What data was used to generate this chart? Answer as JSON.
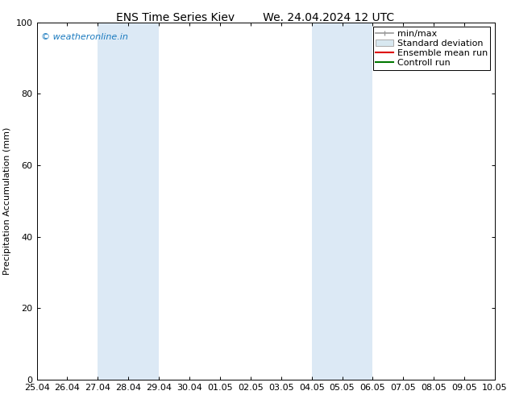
{
  "title_left": "ENS Time Series Kiev",
  "title_right": "We. 24.04.2024 12 UTC",
  "ylabel": "Precipitation Accumulation (mm)",
  "ylim": [
    0,
    100
  ],
  "yticks": [
    0,
    20,
    40,
    60,
    80,
    100
  ],
  "xtick_labels": [
    "25.04",
    "26.04",
    "27.04",
    "28.04",
    "29.04",
    "30.04",
    "01.05",
    "02.05",
    "03.05",
    "04.05",
    "05.05",
    "06.05",
    "07.05",
    "08.05",
    "09.05",
    "10.05"
  ],
  "shaded_regions": [
    {
      "x0_lbl": "27.04",
      "x1_lbl": "29.04",
      "color": "#dce9f5"
    },
    {
      "x0_lbl": "04.05",
      "x1_lbl": "06.05",
      "color": "#dce9f5"
    }
  ],
  "watermark_text": "© weatheronline.in",
  "watermark_color": "#1a7abf",
  "legend_items": [
    {
      "label": "min/max",
      "color": "#999999",
      "lw": 1.2,
      "style": "minmax"
    },
    {
      "label": "Standard deviation",
      "color": "#d8e8f0",
      "border_color": "#aaaaaa",
      "lw": 1,
      "style": "box"
    },
    {
      "label": "Ensemble mean run",
      "color": "#dd0000",
      "lw": 1.5,
      "style": "line"
    },
    {
      "label": "Controll run",
      "color": "#007700",
      "lw": 1.5,
      "style": "line"
    }
  ],
  "background_color": "#ffffff",
  "title_fontsize": 10,
  "axis_fontsize": 8,
  "tick_fontsize": 8,
  "legend_fontsize": 8
}
